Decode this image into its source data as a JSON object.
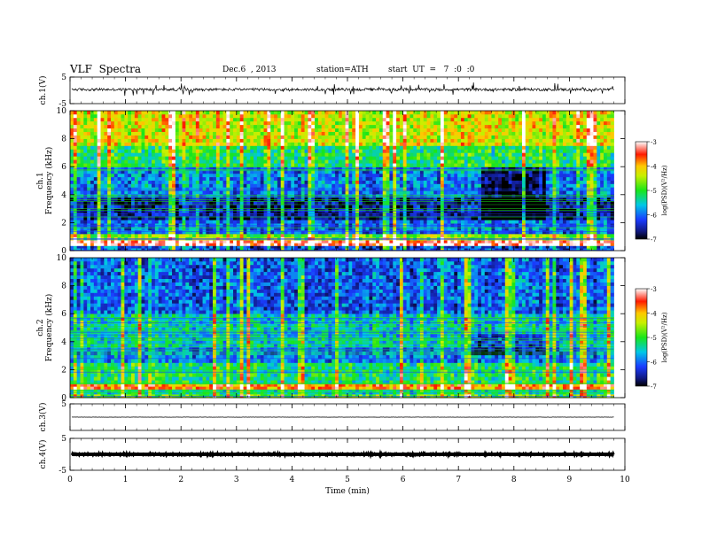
{
  "header": {
    "title": "VLF  Spectra",
    "date": "Dec.6  , 2013",
    "station": "station=ATH",
    "start": "start  UT  =   7  :0  :0"
  },
  "chart_data": [
    {
      "type": "line",
      "panel": "ch1-waveform",
      "ylabel": "ch.1(V)",
      "ylim": [
        -5,
        5
      ],
      "yticks": [
        -5,
        5
      ],
      "description_values": "noisy waveform around 0 V with spikes reaching about +/-2 V",
      "baseline": 0.3,
      "amplitude": 0.5
    },
    {
      "type": "heatmap",
      "panel": "ch1-spectrogram",
      "ylabel_channel": "ch.1",
      "ylabel": "Frequency  (kHz)",
      "ylim": [
        0,
        10
      ],
      "yticks": [
        0,
        2,
        4,
        6,
        8,
        10
      ],
      "colorbar_label": "log(PSD)(V²/Hz)",
      "colorbar_ticks": [
        -3,
        -4,
        -5,
        -6,
        -7
      ],
      "colorbar_range": [
        -7,
        -3
      ],
      "bands": [
        {
          "f": [
            0.0,
            0.35
          ],
          "level": -6.2
        },
        {
          "f": [
            0.35,
            0.75
          ],
          "level": -3.2
        },
        {
          "f": [
            0.75,
            1.2
          ],
          "level": -4.6
        },
        {
          "f": [
            1.2,
            2.2
          ],
          "level": -6.0
        },
        {
          "f": [
            2.2,
            3.8
          ],
          "level": -6.6
        },
        {
          "f": [
            3.8,
            6.0
          ],
          "level": -5.9
        },
        {
          "f": [
            6.0,
            7.5
          ],
          "level": -5.1
        },
        {
          "f": [
            7.5,
            10.0
          ],
          "level": -4.3
        }
      ]
    },
    {
      "type": "heatmap",
      "panel": "ch2-spectrogram",
      "ylabel_channel": "ch.2",
      "ylabel": "Frequency  (kHz)",
      "ylim": [
        0,
        10
      ],
      "yticks": [
        0,
        2,
        4,
        6,
        8,
        10
      ],
      "colorbar_label": "log(PSD)(V²/Hz)",
      "colorbar_ticks": [
        -3,
        -4,
        -5,
        -6,
        -7
      ],
      "colorbar_range": [
        -7,
        -3
      ],
      "bands": [
        {
          "f": [
            0.0,
            0.25
          ],
          "level": -4.8
        },
        {
          "f": [
            0.25,
            0.6
          ],
          "level": -5.4
        },
        {
          "f": [
            0.6,
            1.0
          ],
          "level": -3.8
        },
        {
          "f": [
            1.0,
            2.5
          ],
          "level": -5.2
        },
        {
          "f": [
            2.5,
            3.6
          ],
          "level": -5.9
        },
        {
          "f": [
            3.6,
            6.0
          ],
          "level": -5.5
        },
        {
          "f": [
            6.0,
            10.0
          ],
          "level": -6.1
        }
      ]
    },
    {
      "type": "line",
      "panel": "ch3-waveform",
      "ylabel": "ch.3(V)",
      "ylim": [
        -5,
        5
      ],
      "yticks": [
        5
      ],
      "baseline": 0,
      "amplitude": 0.05
    },
    {
      "type": "line",
      "panel": "ch4-waveform",
      "ylabel": "ch.4(V)",
      "ylim": [
        -5,
        5
      ],
      "yticks": [
        -5,
        5
      ],
      "baseline": 0,
      "amplitude": 0.35
    }
  ],
  "xaxis": {
    "xlabel": "Time  (min)",
    "xlim": [
      0,
      10
    ],
    "data_end": 9.8,
    "ticks": [
      0,
      1,
      2,
      3,
      4,
      5,
      6,
      7,
      8,
      9,
      10
    ]
  }
}
